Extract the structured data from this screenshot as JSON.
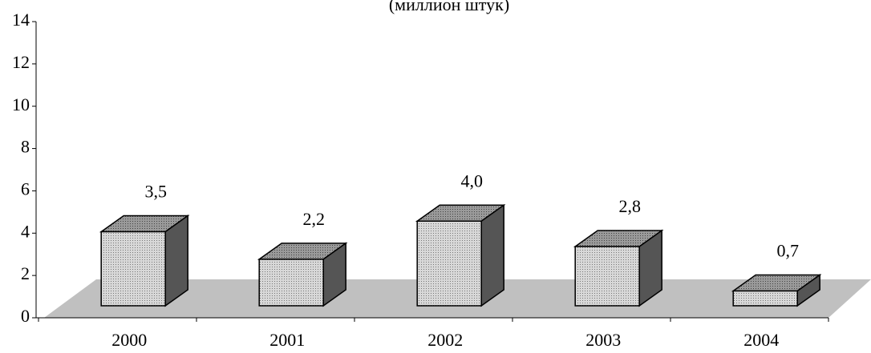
{
  "chart_data": {
    "type": "bar3d",
    "title": "(миллион штук)",
    "categories": [
      "2000",
      "2001",
      "2002",
      "2003",
      "2004"
    ],
    "values": [
      3.5,
      2.2,
      4.0,
      2.8,
      0.7
    ],
    "value_labels": [
      "3,5",
      "2,2",
      "4,0",
      "2,8",
      "0,7"
    ],
    "ylim": [
      0,
      14
    ],
    "yticks": [
      0,
      2,
      4,
      6,
      8,
      10,
      12,
      14
    ]
  }
}
